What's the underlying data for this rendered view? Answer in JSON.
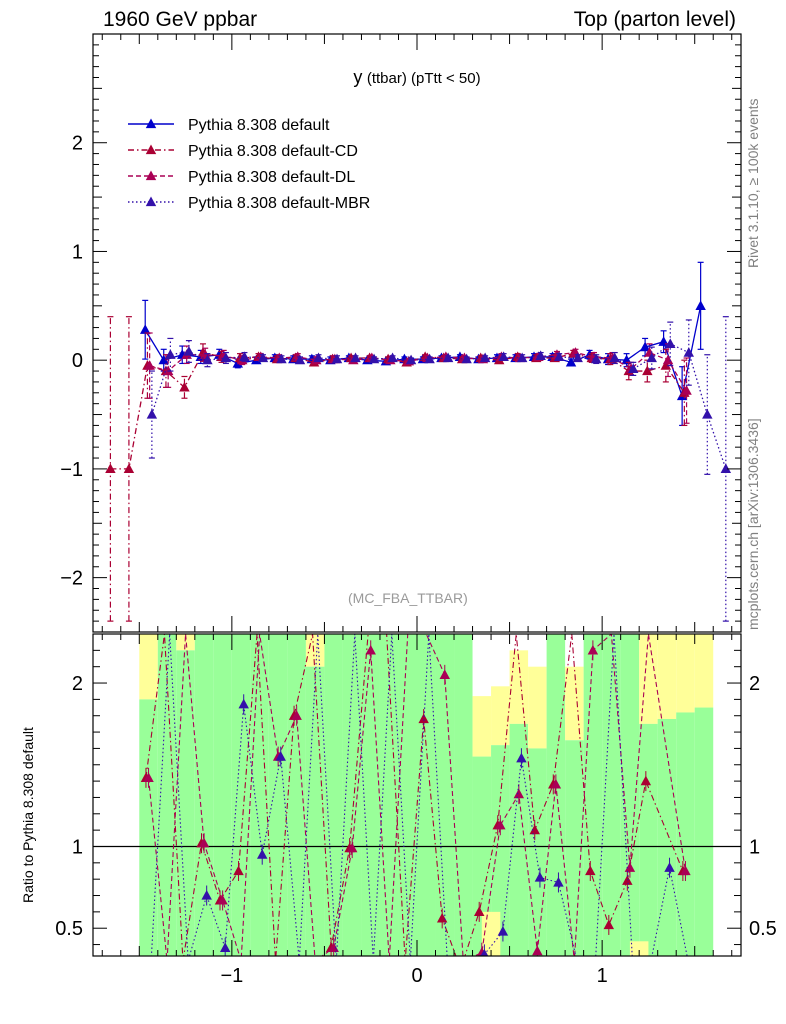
{
  "header": {
    "left": "1960 GeV ppbar",
    "right": "Top (parton level)"
  },
  "side": {
    "rivet": "Rivet 3.1.10, ≥ 100k events",
    "mcplots": "mcplots.cern.ch [arXiv:1306.3436]"
  },
  "plot_title_main": "y",
  "plot_title_sub": "(ttbar) (pTtt < 50)",
  "watermark": "(MC_FBA_TTBAR)",
  "ratio_ylabel": "Ratio to Pythia 8.308 default",
  "colors": {
    "default": "#0000cc",
    "cd": "#aa0033",
    "dl": "#aa0055",
    "mbr": "#3311aa",
    "band_green": "#99ff99",
    "band_yellow": "#ffff99"
  },
  "chart_data": [
    {
      "type": "scatter",
      "panel": "main",
      "title": "y (ttbar) (pTtt < 50)",
      "xlim": [
        -1.75,
        1.75
      ],
      "ylim": [
        -2.5,
        3.0
      ],
      "y_ticks": [
        -2,
        -1,
        0,
        1,
        2
      ],
      "x_ticks": [
        -1,
        0,
        1
      ],
      "legend_position": "top-left",
      "x": [
        -1.65,
        -1.55,
        -1.45,
        -1.35,
        -1.25,
        -1.15,
        -1.05,
        -0.95,
        -0.85,
        -0.75,
        -0.65,
        -0.55,
        -0.45,
        -0.35,
        -0.25,
        -0.15,
        -0.05,
        0.05,
        0.15,
        0.25,
        0.35,
        0.45,
        0.55,
        0.65,
        0.75,
        0.85,
        0.95,
        1.05,
        1.15,
        1.25,
        1.35,
        1.45,
        1.55,
        1.65
      ],
      "series": [
        {
          "name": "Pythia 8.308 default",
          "style": "solid",
          "y": [
            null,
            null,
            0.28,
            0.0,
            0.05,
            0.03,
            0.05,
            -0.03,
            0.0,
            0.02,
            0.01,
            0.01,
            0.0,
            0.02,
            0.0,
            -0.01,
            0.01,
            0.01,
            0.02,
            0.03,
            0.01,
            0.02,
            0.02,
            0.03,
            0.03,
            -0.02,
            0.05,
            0.01,
            0.0,
            0.12,
            0.17,
            -0.33,
            0.5,
            null
          ],
          "err": [
            0,
            0,
            0.27,
            0.1,
            0.08,
            0.06,
            0.05,
            0.04,
            0.03,
            0.03,
            0.03,
            0.03,
            0.03,
            0.02,
            0.02,
            0.02,
            0.02,
            0.02,
            0.02,
            0.02,
            0.02,
            0.03,
            0.03,
            0.03,
            0.03,
            0.03,
            0.04,
            0.05,
            0.06,
            0.08,
            0.1,
            0.27,
            0.4,
            0
          ]
        },
        {
          "name": "Pythia 8.308 default-CD",
          "style": "dashdot",
          "y": [
            -1.0,
            -1.0,
            -0.05,
            -0.1,
            -0.25,
            0.07,
            0.03,
            0.02,
            0.03,
            0.01,
            0.02,
            -0.02,
            0.01,
            0.02,
            0.02,
            0.01,
            -0.02,
            0.03,
            0.02,
            0.01,
            0.02,
            0.0,
            0.03,
            0.02,
            0.02,
            0.06,
            0.02,
            0.01,
            -0.1,
            -0.1,
            -0.05,
            -0.3,
            null,
            null
          ],
          "err": [
            1.4,
            1.4,
            0.3,
            0.15,
            0.1,
            0.08,
            0.05,
            0.04,
            0.03,
            0.03,
            0.03,
            0.03,
            0.03,
            0.02,
            0.02,
            0.02,
            0.02,
            0.02,
            0.02,
            0.02,
            0.02,
            0.03,
            0.03,
            0.03,
            0.03,
            0.03,
            0.04,
            0.05,
            0.08,
            0.1,
            0.15,
            0.3,
            0,
            0
          ]
        },
        {
          "name": "Pythia 8.308 default-DL",
          "style": "dashed",
          "y": [
            null,
            null,
            -0.05,
            -0.1,
            0.05,
            0.05,
            0.04,
            0.0,
            0.03,
            0.02,
            0.03,
            0.0,
            0.01,
            0.0,
            0.02,
            0.0,
            -0.01,
            0.02,
            0.03,
            0.02,
            0.01,
            0.03,
            0.02,
            0.03,
            0.05,
            0.07,
            0.03,
            0.02,
            -0.08,
            0.07,
            0.0,
            -0.28,
            null,
            null
          ],
          "err": [
            0,
            0,
            0.3,
            0.15,
            0.08,
            0.06,
            0.05,
            0.04,
            0.03,
            0.03,
            0.03,
            0.03,
            0.03,
            0.02,
            0.02,
            0.02,
            0.02,
            0.02,
            0.02,
            0.02,
            0.02,
            0.03,
            0.03,
            0.03,
            0.03,
            0.03,
            0.04,
            0.05,
            0.06,
            0.08,
            0.15,
            0.3,
            0,
            0
          ]
        },
        {
          "name": "Pythia 8.308 default-MBR",
          "style": "dotted",
          "y": [
            null,
            null,
            -0.5,
            0.05,
            0.08,
            0.0,
            0.02,
            0.03,
            0.02,
            0.01,
            0.0,
            0.02,
            0.01,
            0.02,
            0.01,
            0.02,
            0.0,
            0.01,
            0.02,
            0.01,
            0.02,
            0.03,
            0.02,
            0.04,
            0.03,
            0.02,
            0.01,
            0.02,
            -0.08,
            0.02,
            0.15,
            0.07,
            -0.5,
            -1.0
          ],
          "err": [
            0,
            0,
            0.4,
            0.15,
            0.1,
            0.06,
            0.05,
            0.04,
            0.03,
            0.03,
            0.03,
            0.03,
            0.03,
            0.02,
            0.02,
            0.02,
            0.02,
            0.02,
            0.02,
            0.02,
            0.02,
            0.03,
            0.03,
            0.03,
            0.03,
            0.03,
            0.04,
            0.05,
            0.06,
            0.1,
            0.2,
            0.3,
            0.55,
            1.4
          ]
        }
      ]
    },
    {
      "type": "scatter",
      "panel": "ratio",
      "ylabel": "Ratio to Pythia 8.308 default",
      "xlim": [
        -1.75,
        1.75
      ],
      "ylim": [
        0.33,
        2.3
      ],
      "y_ticks": [
        0.5,
        1,
        2
      ],
      "x_ticks": [
        -1,
        0,
        1
      ],
      "band_x": [
        -1.5,
        -1.4,
        -1.3,
        -1.2,
        -1.1,
        -1.0,
        -0.9,
        -0.8,
        -0.7,
        -0.6,
        -0.5,
        -0.4,
        -0.3,
        -0.2,
        -0.1,
        0.0,
        0.1,
        0.2,
        0.3,
        0.4,
        0.5,
        0.6,
        0.7,
        0.8,
        0.9,
        1.0,
        1.1,
        1.2,
        1.3,
        1.4,
        1.5,
        1.6
      ],
      "band_inner": [
        1.9,
        2.3,
        2.2,
        2.3,
        2.3,
        2.3,
        2.3,
        2.3,
        2.3,
        2.1,
        2.3,
        2.3,
        2.3,
        2.3,
        2.3,
        2.3,
        2.3,
        2.3,
        1.55,
        1.62,
        1.75,
        1.6,
        2.3,
        1.65,
        2.3,
        2.3,
        2.3,
        1.75,
        1.78,
        1.82,
        1.85,
        1.84
      ],
      "band_outer": [
        2.3,
        2.3,
        2.3,
        2.3,
        2.3,
        2.3,
        2.3,
        2.3,
        2.3,
        2.3,
        2.3,
        2.3,
        2.3,
        2.3,
        2.3,
        2.3,
        2.3,
        2.3,
        1.92,
        1.98,
        2.2,
        2.1,
        2.3,
        2.1,
        2.3,
        2.3,
        2.3,
        2.3,
        2.3,
        2.3,
        2.3,
        2.3
      ],
      "series": [
        {
          "name": "Pythia 8.308 default-CD",
          "y": [
            null,
            null,
            1.42,
            2.3,
            0.3,
            1.02,
            0.67,
            0.85,
            2.3,
            0.3,
            1.8,
            2.3,
            0.38,
            0.99,
            2.3,
            2.3,
            0.3,
            1.78,
            0.56,
            0.25,
            0.6,
            1.13,
            2.3,
            1.1,
            1.38,
            2.3,
            0.85,
            0.52,
            0.79,
            1.4,
            null,
            0.85,
            null,
            null
          ]
        },
        {
          "name": "Pythia 8.308 default-DL",
          "y": [
            null,
            null,
            1.42,
            0.3,
            2.3,
            1.02,
            0.67,
            0.3,
            2.3,
            1.55,
            1.8,
            0.3,
            0.38,
            0.99,
            2.2,
            0.3,
            2.3,
            2.3,
            2.05,
            0.3,
            0.35,
            1.13,
            1.32,
            0.36,
            1.38,
            0.3,
            2.2,
            2.3,
            0.87,
            2.3,
            null,
            0.85,
            null,
            null
          ]
        },
        {
          "name": "Pythia 8.308 default-MBR",
          "y": [
            null,
            null,
            0.3,
            2.3,
            0.3,
            0.7,
            0.38,
            1.87,
            0.95,
            1.55,
            0.3,
            2.3,
            0.3,
            2.3,
            0.3,
            2.3,
            0.3,
            2.3,
            0.3,
            0.3,
            0.34,
            0.48,
            1.54,
            0.81,
            0.78,
            0.3,
            0.3,
            2.3,
            0.3,
            0.3,
            0.87,
            0.3,
            null,
            null
          ]
        }
      ]
    }
  ]
}
